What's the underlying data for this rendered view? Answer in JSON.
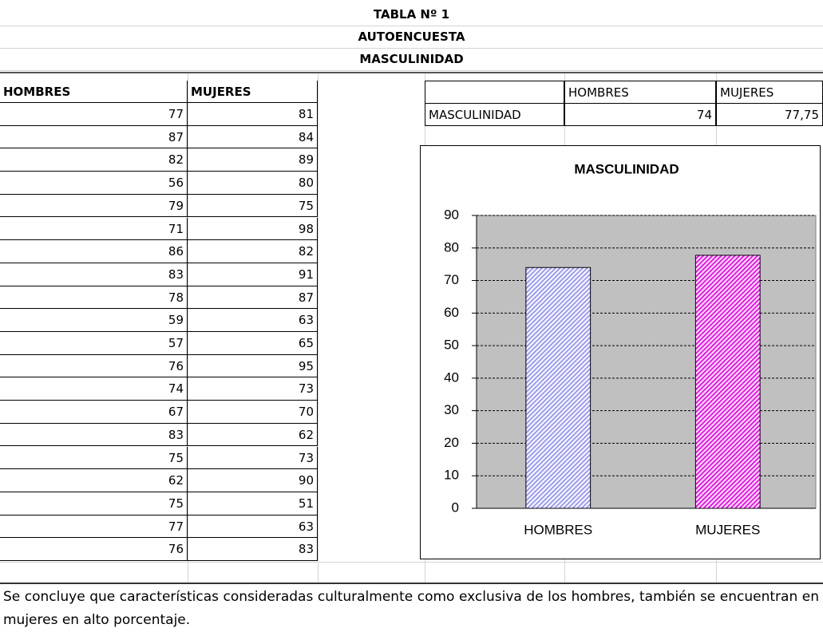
{
  "header": {
    "lines": [
      "TABLA Nº 1",
      "AUTOENCUESTA",
      "MASCULINIDAD"
    ]
  },
  "table": {
    "columns": [
      "HOMBRES",
      "MUJERES"
    ],
    "rows": [
      [
        77,
        81
      ],
      [
        87,
        84
      ],
      [
        82,
        89
      ],
      [
        56,
        80
      ],
      [
        79,
        75
      ],
      [
        71,
        98
      ],
      [
        86,
        82
      ],
      [
        83,
        91
      ],
      [
        78,
        87
      ],
      [
        59,
        63
      ],
      [
        57,
        65
      ],
      [
        76,
        95
      ],
      [
        74,
        73
      ],
      [
        67,
        70
      ],
      [
        83,
        62
      ],
      [
        75,
        73
      ],
      [
        62,
        90
      ],
      [
        75,
        51
      ],
      [
        77,
        63
      ],
      [
        76,
        83
      ]
    ]
  },
  "summary": {
    "columns": [
      "HOMBRES",
      "MUJERES"
    ],
    "row_label": "MASCULINIDAD",
    "values": [
      74,
      "77,75"
    ]
  },
  "chart_data": {
    "type": "bar",
    "title": "MASCULINIDAD",
    "categories": [
      "HOMBRES",
      "MUJERES"
    ],
    "values": [
      74,
      77.75
    ],
    "colors": [
      "#9999ff",
      "#ff00ff"
    ],
    "ylim": [
      0,
      90
    ],
    "yticks": [
      0,
      10,
      20,
      30,
      40,
      50,
      60,
      70,
      80,
      90
    ],
    "grid": true
  },
  "conclusion": "Se concluye que características consideradas culturalmente como exclusiva de los hombres, también se encuentran en mujeres en alto porcentaje."
}
